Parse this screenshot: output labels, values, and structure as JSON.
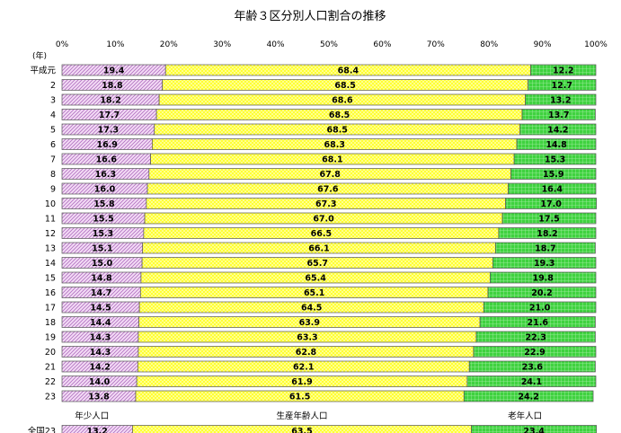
{
  "chart_data": {
    "type": "bar",
    "orientation": "horizontal",
    "stacked": true,
    "percent": true,
    "title": "年齢３区分別人口割合の推移",
    "unit_label": "(年)",
    "xlim": [
      0,
      100
    ],
    "xticks": [
      "0%",
      "10%",
      "20%",
      "30%",
      "40%",
      "50%",
      "60%",
      "70%",
      "80%",
      "90%",
      "100%"
    ],
    "grid": false,
    "categories": [
      "平成元",
      "2",
      "3",
      "4",
      "5",
      "6",
      "7",
      "8",
      "9",
      "10",
      "11",
      "12",
      "13",
      "14",
      "15",
      "16",
      "17",
      "18",
      "19",
      "20",
      "21",
      "22",
      "23",
      "全国23"
    ],
    "series": [
      {
        "name": "年少人口",
        "color": "#e8b8f0",
        "pattern": "diagonal-hatch",
        "values": [
          19.4,
          18.8,
          18.2,
          17.7,
          17.3,
          16.9,
          16.6,
          16.3,
          16.0,
          15.8,
          15.5,
          15.3,
          15.1,
          15.0,
          14.8,
          14.7,
          14.5,
          14.4,
          14.3,
          14.3,
          14.2,
          14.0,
          13.8,
          13.2
        ]
      },
      {
        "name": "生産年齢人口",
        "color": "#ffff33",
        "pattern": "dots",
        "values": [
          68.4,
          68.5,
          68.6,
          68.5,
          68.5,
          68.3,
          68.1,
          67.8,
          67.6,
          67.3,
          67.0,
          66.5,
          66.1,
          65.7,
          65.4,
          65.1,
          64.5,
          63.9,
          63.3,
          62.8,
          62.1,
          61.9,
          61.5,
          63.5
        ]
      },
      {
        "name": "老年人口",
        "color": "#33cc33",
        "pattern": "grid",
        "values": [
          12.2,
          12.7,
          13.2,
          13.7,
          14.2,
          14.8,
          15.3,
          15.9,
          16.4,
          17.0,
          17.5,
          18.2,
          18.7,
          19.3,
          19.8,
          20.2,
          21.0,
          21.6,
          22.3,
          22.9,
          23.6,
          24.1,
          24.2,
          23.4
        ]
      }
    ],
    "legend": "bottom"
  }
}
